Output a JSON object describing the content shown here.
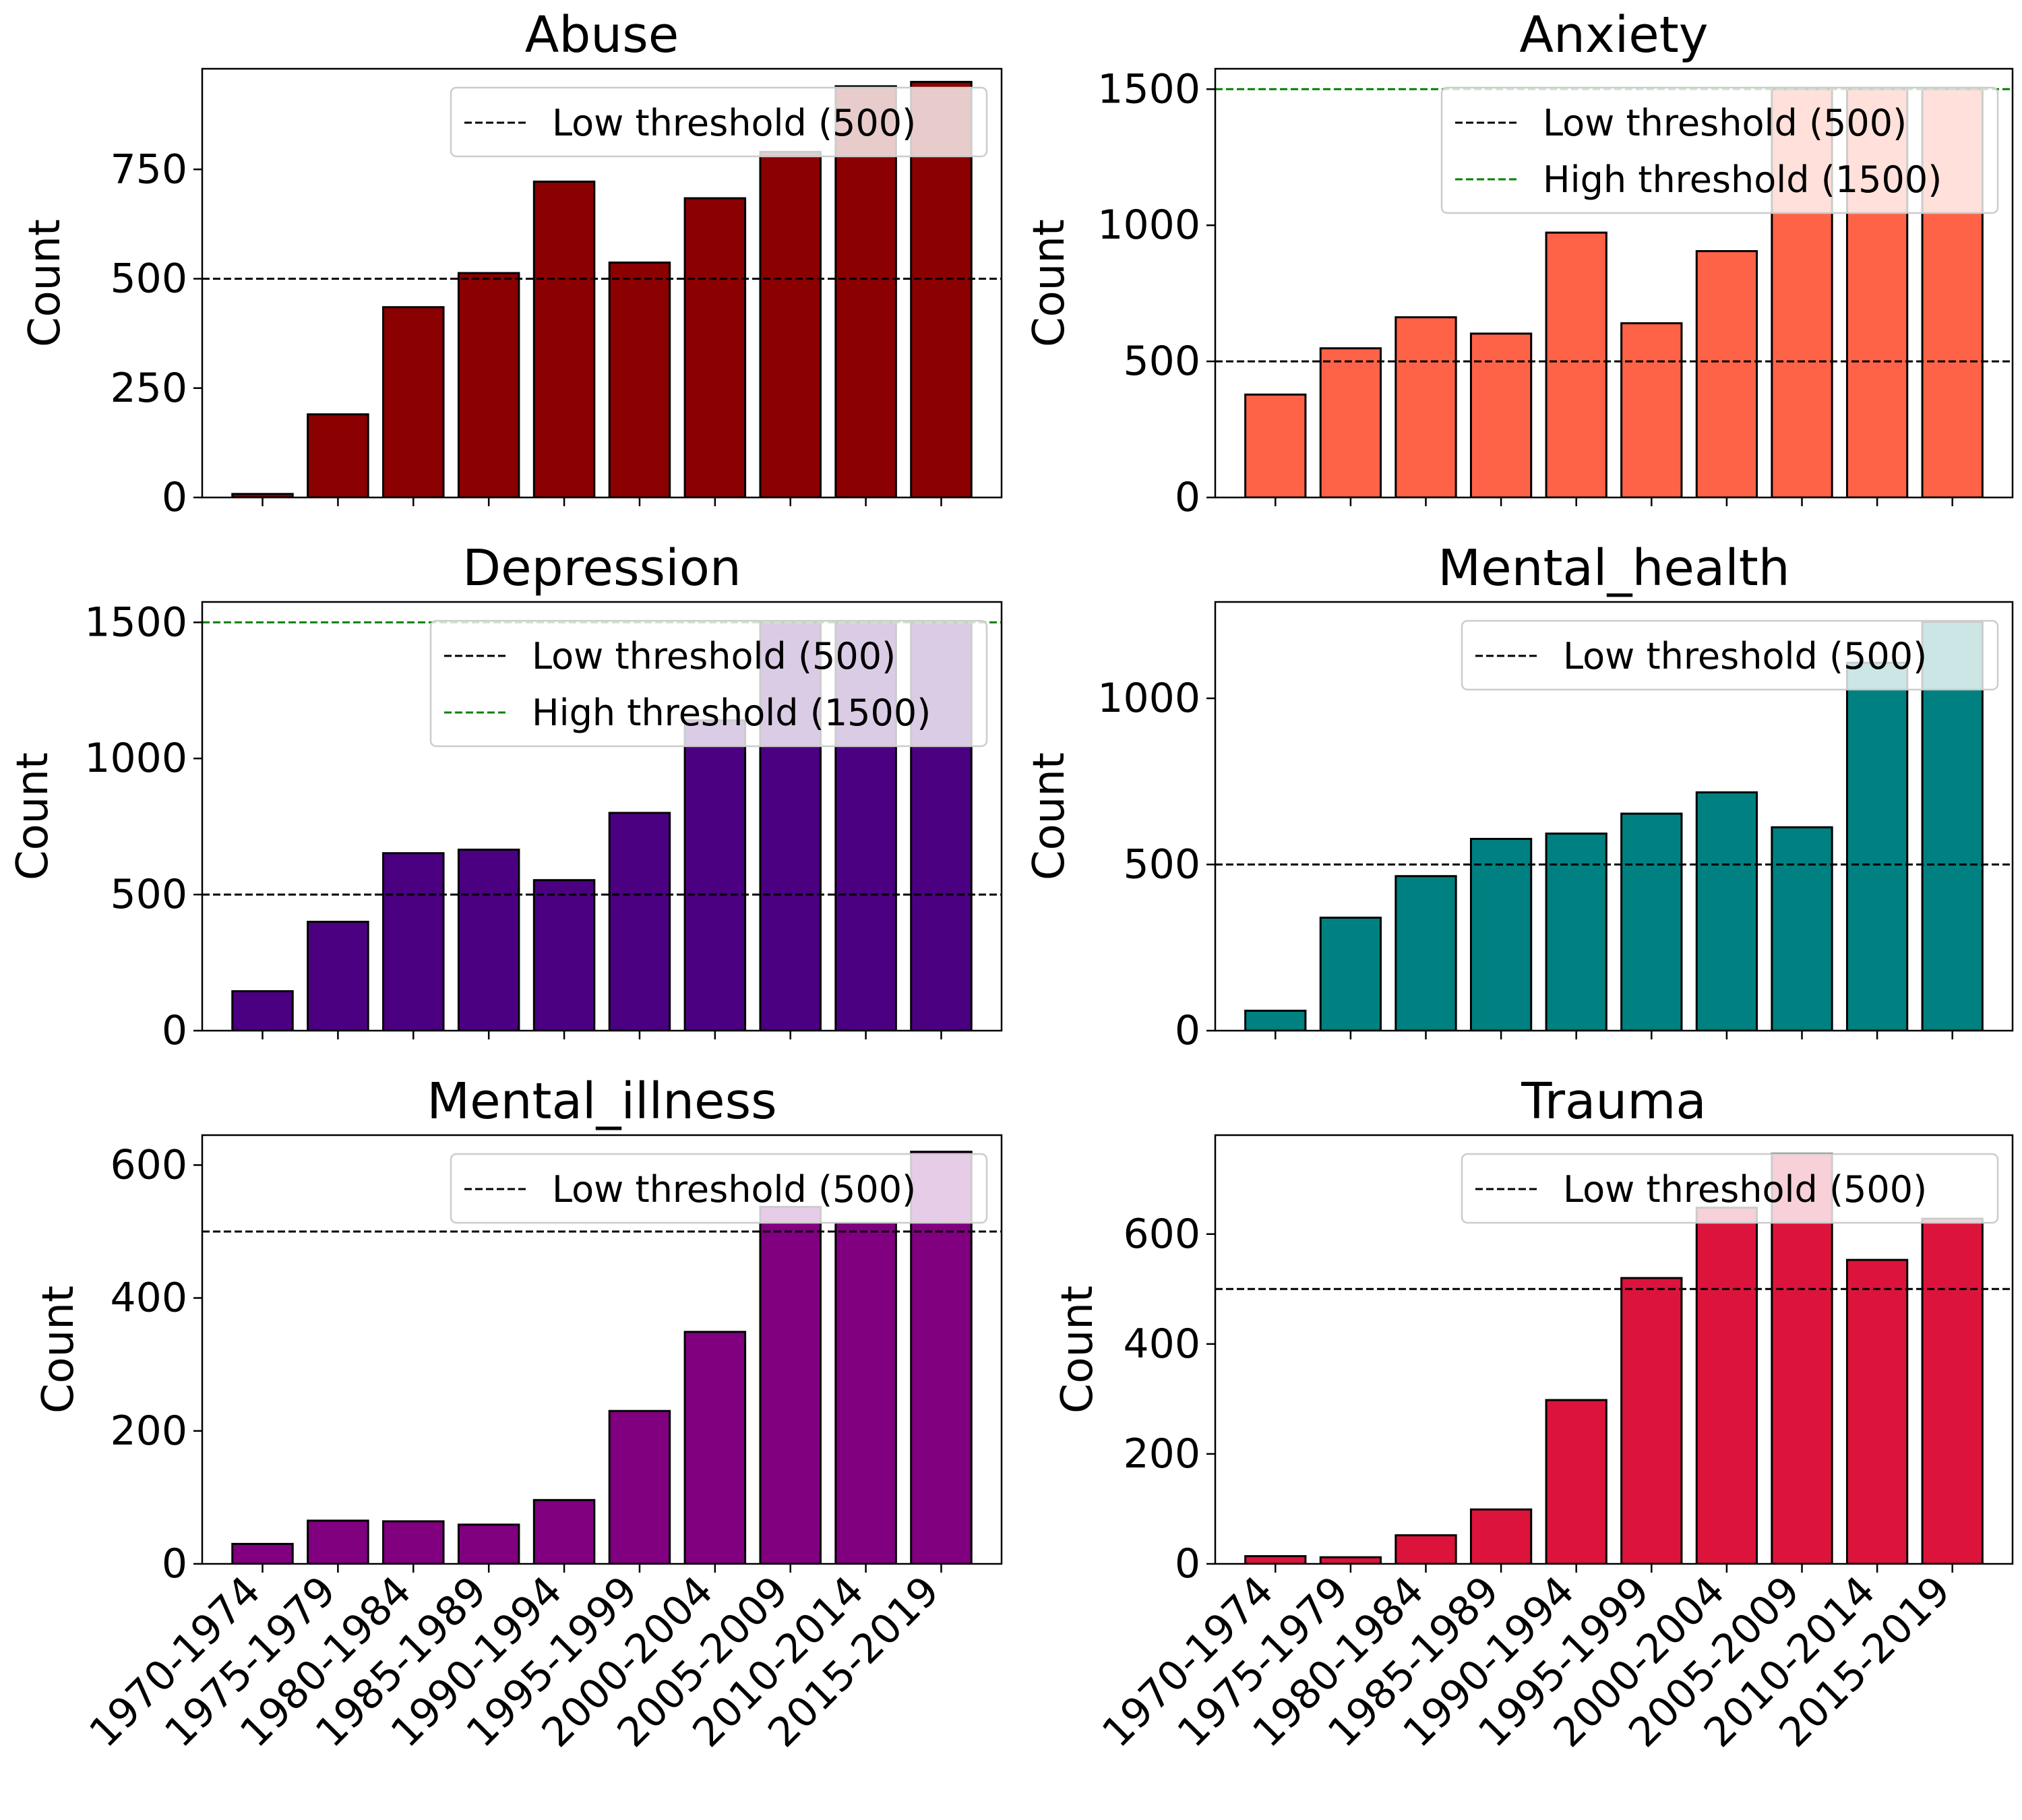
{
  "chart_data": [
    {
      "type": "bar",
      "title": "Abuse",
      "ylabel": "Count",
      "xlabel": "",
      "color": "#8b0000",
      "categories": [
        "1970-1974",
        "1975-1979",
        "1980-1984",
        "1985-1989",
        "1990-1994",
        "1995-1999",
        "2000-2004",
        "2005-2009",
        "2010-2014",
        "2015-2019"
      ],
      "values": [
        8,
        190,
        435,
        513,
        722,
        537,
        684,
        790,
        940,
        950
      ],
      "ylim": [
        0,
        980
      ],
      "yticks": [
        0,
        250,
        500,
        750
      ],
      "ytick_labels": [
        "0",
        "250",
        "500",
        "750"
      ],
      "show_xticklabels": false,
      "thresholds": [
        {
          "value": 500,
          "label": "Low threshold (500)",
          "color": "#000000"
        }
      ],
      "legend_loc": "upper-right"
    },
    {
      "type": "bar",
      "title": "Anxiety",
      "ylabel": "Count",
      "xlabel": "",
      "color": "#ff6347",
      "categories": [
        "1970-1974",
        "1975-1979",
        "1980-1984",
        "1985-1989",
        "1990-1994",
        "1995-1999",
        "2000-2004",
        "2005-2009",
        "2010-2014",
        "2015-2019"
      ],
      "values": [
        378,
        548,
        662,
        602,
        973,
        640,
        905,
        1500,
        1500,
        1500
      ],
      "ylim": [
        0,
        1575
      ],
      "yticks": [
        0,
        500,
        1000,
        1500
      ],
      "ytick_labels": [
        "0",
        "500",
        "1000",
        "1500"
      ],
      "show_xticklabels": false,
      "thresholds": [
        {
          "value": 500,
          "label": "Low threshold (500)",
          "color": "#000000"
        },
        {
          "value": 1500,
          "label": "High threshold (1500)",
          "color": "#008000"
        }
      ],
      "legend_loc": "upper-right"
    },
    {
      "type": "bar",
      "title": "Depression",
      "ylabel": "Count",
      "xlabel": "",
      "color": "#4b0082",
      "categories": [
        "1970-1974",
        "1975-1979",
        "1980-1984",
        "1985-1989",
        "1990-1994",
        "1995-1999",
        "2000-2004",
        "2005-2009",
        "2010-2014",
        "2015-2019"
      ],
      "values": [
        145,
        400,
        652,
        665,
        553,
        800,
        1140,
        1500,
        1500,
        1500
      ],
      "ylim": [
        0,
        1575
      ],
      "yticks": [
        0,
        500,
        1000,
        1500
      ],
      "ytick_labels": [
        "0",
        "500",
        "1000",
        "1500"
      ],
      "show_xticklabels": false,
      "thresholds": [
        {
          "value": 500,
          "label": "Low threshold (500)",
          "color": "#000000"
        },
        {
          "value": 1500,
          "label": "High threshold (1500)",
          "color": "#008000"
        }
      ],
      "legend_loc": "upper-right"
    },
    {
      "type": "bar",
      "title": "Mental_health",
      "ylabel": "Count",
      "xlabel": "",
      "color": "#008080",
      "categories": [
        "1970-1974",
        "1975-1979",
        "1980-1984",
        "1985-1989",
        "1990-1994",
        "1995-1999",
        "2000-2004",
        "2005-2009",
        "2010-2014",
        "2015-2019"
      ],
      "values": [
        60,
        340,
        465,
        577,
        593,
        653,
        717,
        612,
        1107,
        1230
      ],
      "ylim": [
        0,
        1290
      ],
      "yticks": [
        0,
        500,
        1000
      ],
      "ytick_labels": [
        "0",
        "500",
        "1000"
      ],
      "show_xticklabels": false,
      "thresholds": [
        {
          "value": 500,
          "label": "Low threshold (500)",
          "color": "#000000"
        }
      ],
      "legend_loc": "upper-right"
    },
    {
      "type": "bar",
      "title": "Mental_illness",
      "ylabel": "Count",
      "xlabel": "",
      "color": "#800080",
      "categories": [
        "1970-1974",
        "1975-1979",
        "1980-1984",
        "1985-1989",
        "1990-1994",
        "1995-1999",
        "2000-2004",
        "2005-2009",
        "2010-2014",
        "2015-2019"
      ],
      "values": [
        30,
        65,
        64,
        59,
        96,
        230,
        349,
        537,
        513,
        620
      ],
      "ylim": [
        0,
        645
      ],
      "yticks": [
        0,
        200,
        400,
        600
      ],
      "ytick_labels": [
        "0",
        "200",
        "400",
        "600"
      ],
      "show_xticklabels": true,
      "thresholds": [
        {
          "value": 500,
          "label": "Low threshold (500)",
          "color": "#000000"
        }
      ],
      "legend_loc": "upper-right"
    },
    {
      "type": "bar",
      "title": "Trauma",
      "ylabel": "Count",
      "xlabel": "",
      "color": "#dc143c",
      "categories": [
        "1970-1974",
        "1975-1979",
        "1980-1984",
        "1985-1989",
        "1990-1994",
        "1995-1999",
        "2000-2004",
        "2005-2009",
        "2010-2014",
        "2015-2019"
      ],
      "values": [
        14,
        12,
        52,
        99,
        298,
        520,
        648,
        746,
        553,
        628
      ],
      "ylim": [
        0,
        780
      ],
      "yticks": [
        0,
        200,
        400,
        600
      ],
      "ytick_labels": [
        "0",
        "200",
        "400",
        "600"
      ],
      "show_xticklabels": true,
      "thresholds": [
        {
          "value": 500,
          "label": "Low threshold (500)",
          "color": "#000000"
        }
      ],
      "legend_loc": "upper-right"
    }
  ]
}
